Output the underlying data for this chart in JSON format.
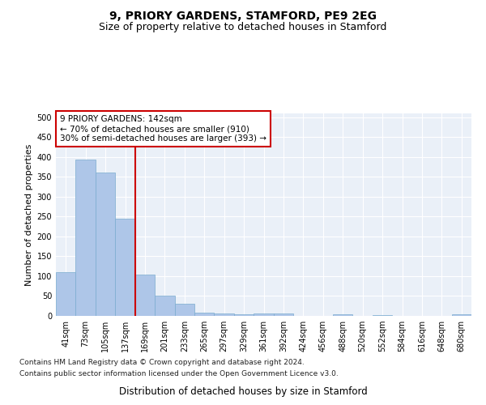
{
  "title": "9, PRIORY GARDENS, STAMFORD, PE9 2EG",
  "subtitle": "Size of property relative to detached houses in Stamford",
  "xlabel": "Distribution of detached houses by size in Stamford",
  "ylabel": "Number of detached properties",
  "categories": [
    "41sqm",
    "73sqm",
    "105sqm",
    "137sqm",
    "169sqm",
    "201sqm",
    "233sqm",
    "265sqm",
    "297sqm",
    "329sqm",
    "361sqm",
    "392sqm",
    "424sqm",
    "456sqm",
    "488sqm",
    "520sqm",
    "552sqm",
    "584sqm",
    "616sqm",
    "648sqm",
    "680sqm"
  ],
  "values": [
    110,
    393,
    362,
    244,
    104,
    50,
    30,
    9,
    7,
    5,
    6,
    7,
    1,
    0,
    4,
    0,
    3,
    0,
    0,
    0,
    4
  ],
  "bar_color": "#aec6e8",
  "bar_edgecolor": "#7aabcf",
  "vline_color": "#cc0000",
  "annotation_box_text": "9 PRIORY GARDENS: 142sqm\n← 70% of detached houses are smaller (910)\n30% of semi-detached houses are larger (393) →",
  "annotation_box_edgecolor": "#cc0000",
  "annotation_box_facecolor": "white",
  "ylim": [
    0,
    510
  ],
  "yticks": [
    0,
    50,
    100,
    150,
    200,
    250,
    300,
    350,
    400,
    450,
    500
  ],
  "background_color": "#eaf0f8",
  "footer_line1": "Contains HM Land Registry data © Crown copyright and database right 2024.",
  "footer_line2": "Contains public sector information licensed under the Open Government Licence v3.0.",
  "title_fontsize": 10,
  "subtitle_fontsize": 9,
  "xlabel_fontsize": 8.5,
  "ylabel_fontsize": 8,
  "tick_fontsize": 7,
  "annotation_fontsize": 7.5,
  "footer_fontsize": 6.5
}
